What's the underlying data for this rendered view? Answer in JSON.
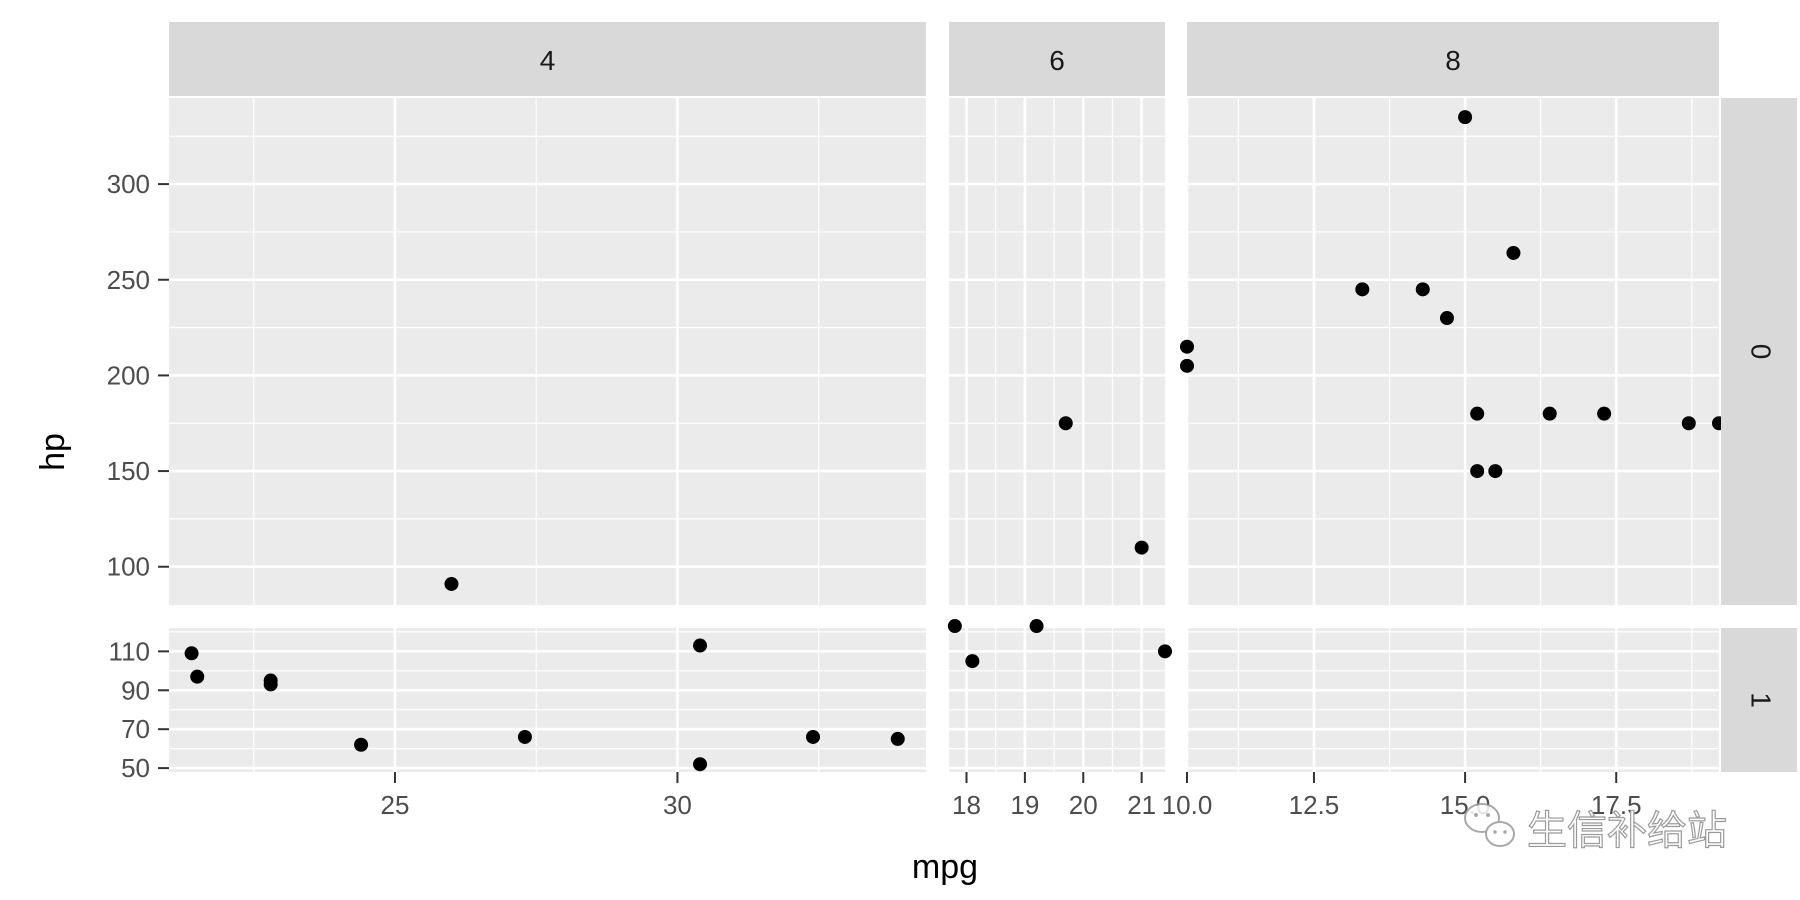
{
  "chart_data": {
    "type": "scatter",
    "xlabel": "mpg",
    "ylabel": "hp",
    "facet_cols": [
      "4",
      "6",
      "8"
    ],
    "facet_rows": [
      "0",
      "1"
    ],
    "grid": true,
    "point_color": "#000000",
    "panel_background": "#ebebeb",
    "strip_background": "#d9d9d9",
    "x_ranges": [
      [
        21.0,
        34.4
      ],
      [
        17.7,
        21.4
      ],
      [
        10.4,
        19.2
      ]
    ],
    "x_ticks": [
      {
        "values": [
          25,
          30
        ],
        "labels": [
          "25",
          "30"
        ]
      },
      {
        "values": [
          18,
          19,
          20,
          21
        ],
        "labels": [
          "18",
          "19",
          "20",
          "21"
        ]
      },
      {
        "values": [
          10,
          12.5,
          15,
          17.5
        ],
        "labels": [
          "10.0",
          "12.5",
          "15.0",
          "17.5"
        ]
      }
    ],
    "y_ranges": [
      [
        80,
        345
      ],
      [
        48,
        122
      ]
    ],
    "y_ticks": [
      {
        "values": [
          100,
          150,
          200,
          250,
          300
        ],
        "labels": [
          "100",
          "150",
          "200",
          "250",
          "300"
        ]
      },
      {
        "values": [
          50,
          70,
          90,
          110
        ],
        "labels": [
          "50",
          "70",
          "90",
          "110"
        ]
      }
    ],
    "panels": [
      {
        "col": 0,
        "row": 0,
        "points": [
          [
            26.0,
            91
          ]
        ]
      },
      {
        "col": 1,
        "row": 0,
        "points": [
          [
            19.7,
            175
          ],
          [
            21.0,
            110
          ]
        ]
      },
      {
        "col": 2,
        "row": 0,
        "points": [
          [
            15.0,
            335
          ],
          [
            15.8,
            264
          ],
          [
            13.3,
            245
          ],
          [
            14.3,
            245
          ],
          [
            14.7,
            230
          ],
          [
            10.4,
            215
          ],
          [
            10.4,
            205
          ],
          [
            15.2,
            180
          ],
          [
            16.4,
            180
          ],
          [
            17.3,
            180
          ],
          [
            18.7,
            175
          ],
          [
            19.2,
            175
          ],
          [
            15.2,
            150
          ],
          [
            15.5,
            150
          ]
        ]
      },
      {
        "col": 0,
        "row": 1,
        "points": [
          [
            21.4,
            109
          ],
          [
            21.5,
            97
          ],
          [
            22.8,
            95
          ],
          [
            22.8,
            93
          ],
          [
            24.4,
            62
          ],
          [
            27.3,
            66
          ],
          [
            30.4,
            113
          ],
          [
            30.4,
            52
          ],
          [
            32.4,
            66
          ],
          [
            33.9,
            65
          ]
        ]
      },
      {
        "col": 1,
        "row": 1,
        "points": [
          [
            17.8,
            123
          ],
          [
            18.1,
            105
          ],
          [
            19.2,
            123
          ],
          [
            21.4,
            110
          ]
        ]
      },
      {
        "col": 2,
        "row": 1,
        "points": []
      }
    ]
  },
  "watermark": {
    "text": "生信补给站",
    "icon": "wechat-icon"
  }
}
